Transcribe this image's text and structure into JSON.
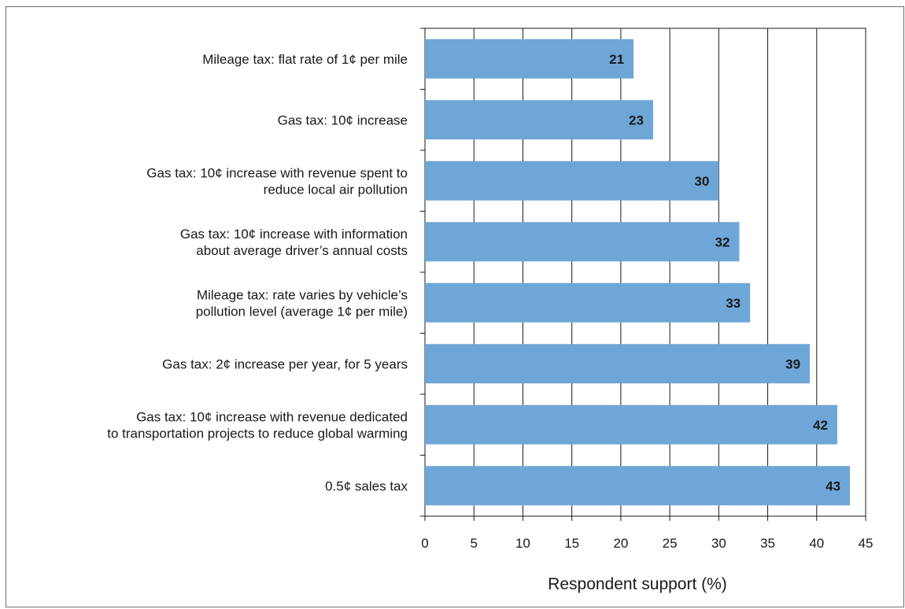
{
  "chart_data": {
    "type": "bar",
    "orientation": "horizontal",
    "categories": [
      [
        "Mileage tax: flat rate of 1¢ per mile"
      ],
      [
        "Gas tax: 10¢ increase"
      ],
      [
        "Gas tax: 10¢ increase with revenue spent to",
        "reduce local air pollution"
      ],
      [
        "Gas tax: 10¢ increase with information",
        "about average driver’s annual costs"
      ],
      [
        "Mileage tax: rate varies by vehicle’s",
        "pollution level (average 1¢ per mile)"
      ],
      [
        "Gas tax: 2¢ increase per year, for 5 years"
      ],
      [
        "Gas tax: 10¢ increase with revenue dedicated",
        "to transportation projects to reduce global warming"
      ],
      [
        "0.5¢ sales tax"
      ]
    ],
    "values": [
      21.3,
      23.3,
      30.0,
      32.1,
      33.2,
      39.3,
      42.1,
      43.4
    ],
    "data_labels": [
      "21",
      "23",
      "30",
      "32",
      "33",
      "39",
      "42",
      "43"
    ],
    "xlabel": "Respondent support (%)",
    "xlim": [
      0,
      45
    ],
    "xticks": [
      "0",
      "5",
      "10",
      "15",
      "20",
      "25",
      "30",
      "35",
      "40",
      "45"
    ],
    "grid": "vertical",
    "colors": {
      "bar": "#6fa6d8",
      "grid": "#1a1a1a",
      "text": "#1a1a1a"
    }
  }
}
